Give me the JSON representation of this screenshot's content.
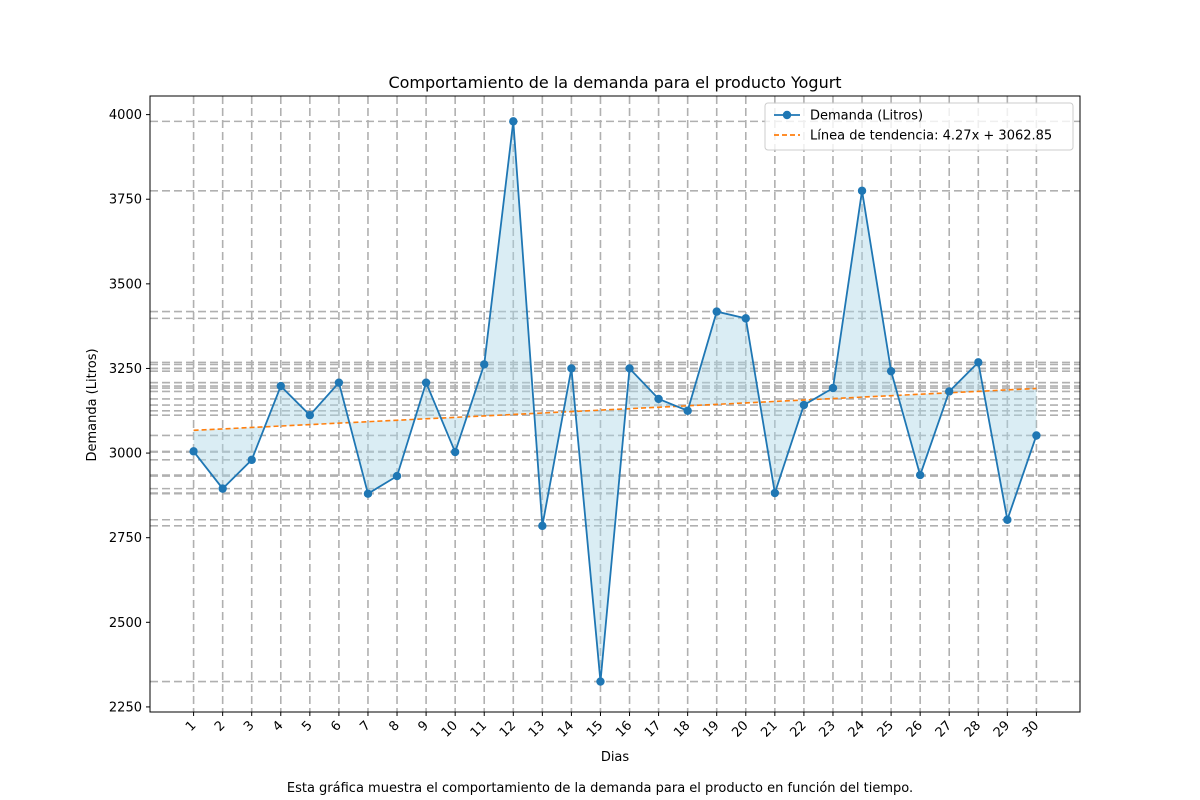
{
  "chart_data": {
    "type": "line",
    "title": "Comportamiento de la demanda para el producto Yogurt",
    "xlabel": "Dias",
    "ylabel": "Demanda (Litros)",
    "x": [
      1,
      2,
      3,
      4,
      5,
      6,
      7,
      8,
      9,
      10,
      11,
      12,
      13,
      14,
      15,
      16,
      17,
      18,
      19,
      20,
      21,
      22,
      23,
      24,
      25,
      26,
      27,
      28,
      29,
      30
    ],
    "x_tick_labels": [
      "1",
      "2",
      "3",
      "4",
      "5",
      "6",
      "7",
      "8",
      "9",
      "10",
      "11",
      "12",
      "13",
      "14",
      "15",
      "16",
      "17",
      "18",
      "19",
      "20",
      "21",
      "22",
      "23",
      "24",
      "25",
      "26",
      "27",
      "28",
      "29",
      "30"
    ],
    "y_ticks": [
      2250,
      2500,
      2750,
      3000,
      3250,
      3500,
      3750,
      4000
    ],
    "y_tick_labels": [
      "2250",
      "2500",
      "2750",
      "3000",
      "3250",
      "3500",
      "3750",
      "4000"
    ],
    "ylim": [
      2235,
      4055
    ],
    "xlim": [
      -0.5,
      31.5
    ],
    "grid": true,
    "legend_position": "top-right",
    "series": [
      {
        "name": "Demanda (Litros)",
        "style": "solid line with circle markers",
        "color": "#1f77b4",
        "fill_to_trend": "#add8e6",
        "values": [
          3005,
          2895,
          2980,
          3198,
          3112,
          3208,
          2880,
          2932,
          3208,
          3003,
          3262,
          3980,
          2785,
          3250,
          2325,
          3250,
          3160,
          3125,
          3418,
          3398,
          2882,
          3142,
          3192,
          3775,
          3242,
          2935,
          3182,
          3268,
          2803,
          3052
        ]
      },
      {
        "name": "Línea de tendencia: 4.27x + 3062.85",
        "style": "dashed",
        "color": "#ff7f0e",
        "slope": 4.27,
        "intercept": 3062.85
      }
    ]
  },
  "caption": "Esta gráfica muestra el comportamiento de la demanda para el producto en función del tiempo."
}
